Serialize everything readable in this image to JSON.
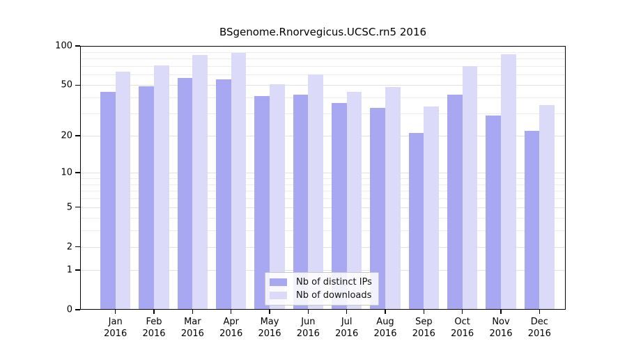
{
  "title": "BSgenome.Rnorvegicus.UCSC.rn5 2016",
  "chart_data": {
    "type": "bar",
    "title": "BSgenome.Rnorvegicus.UCSC.rn5 2016",
    "xlabel": "",
    "ylabel": "",
    "year": "2016",
    "months": [
      "Jan",
      "Feb",
      "Mar",
      "Apr",
      "May",
      "Jun",
      "Jul",
      "Aug",
      "Sep",
      "Oct",
      "Nov",
      "Dec"
    ],
    "categories": [
      "Jan 2016",
      "Feb 2016",
      "Mar 2016",
      "Apr 2016",
      "May 2016",
      "Jun 2016",
      "Jul 2016",
      "Aug 2016",
      "Sep 2016",
      "Oct 2016",
      "Nov 2016",
      "Dec 2016"
    ],
    "series": [
      {
        "name": "Nb of distinct IPs",
        "color": "#a7a7f2",
        "values": [
          44,
          49,
          57,
          55,
          41,
          42,
          36,
          33,
          21,
          42,
          29,
          22
        ]
      },
      {
        "name": "Nb of downloads",
        "color": "#dbdbf9",
        "values": [
          63,
          71,
          85,
          88,
          51,
          60,
          44,
          48,
          34,
          70,
          86,
          35
        ]
      }
    ],
    "y_axis": {
      "scale": "log1p",
      "range": [
        0,
        100
      ],
      "tick_labels": [
        "100",
        "50",
        "20",
        "10",
        "5",
        "2",
        "1",
        "0"
      ],
      "ticks": [
        100,
        50,
        20,
        10,
        5,
        2,
        1,
        0
      ],
      "minor_gridlines": [
        3,
        4,
        6,
        7,
        8,
        9,
        30,
        40,
        60,
        70,
        80,
        90
      ],
      "major_gridlines": [
        1,
        2,
        5,
        10,
        20,
        50
      ]
    },
    "legend_position": "bottom-center",
    "grid": "horizontal"
  }
}
